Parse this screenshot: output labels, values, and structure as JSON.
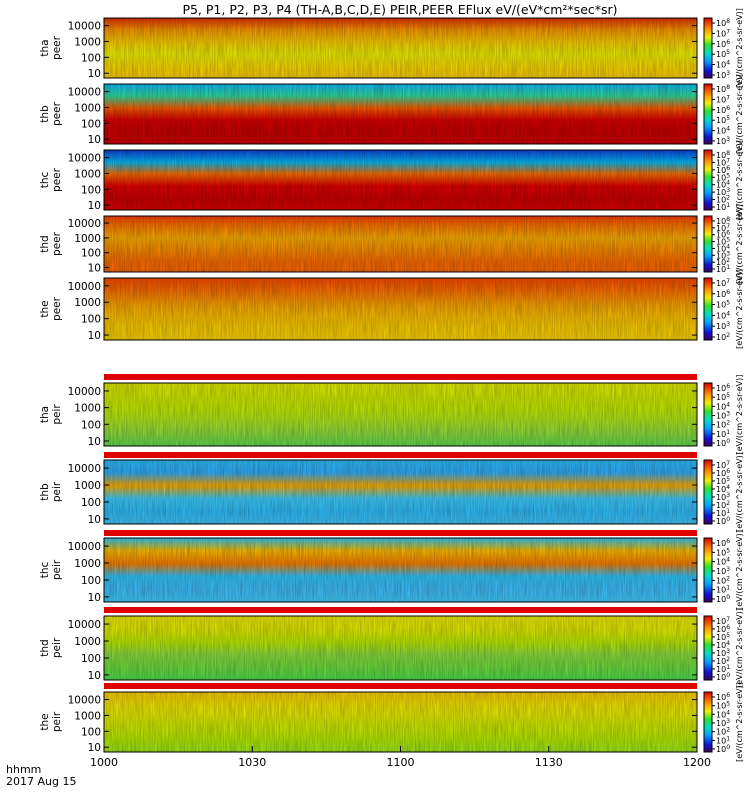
{
  "title": "P5, P1, P2, P3, P4 (TH-A,B,C,D,E) PEIR,PEER EFlux eV/(eV*cm²*sec*sr)",
  "time_labels": {
    "line1": "hhmm",
    "line2": "2017 Aug 15"
  },
  "colorbar_label": "[eV/(cm^2-s-sr-eV)]",
  "chart_data": [
    {
      "type": "heatmap",
      "name": "tha peer",
      "ylabel": [
        "tha",
        "peer"
      ],
      "yticks": [
        "10000",
        "1000",
        "100",
        "10"
      ],
      "ylim": [
        5,
        30000
      ],
      "yscale": "log",
      "xticks": [
        "1000",
        "1030",
        "1100",
        "1130",
        "1200"
      ],
      "xrange": [
        "10:00",
        "12:00"
      ],
      "colorbar_ticks": [
        "10^8",
        "10^7",
        "10^6",
        "10^5",
        "10^4",
        "10^3"
      ],
      "colorbar_label": "[eV/(cm^2-s-sr-eV)]",
      "state_bar": false
    },
    {
      "type": "heatmap",
      "name": "thb peer",
      "ylabel": [
        "thb",
        "peer"
      ],
      "yticks": [
        "10000",
        "1000",
        "100",
        "10"
      ],
      "ylim": [
        5,
        30000
      ],
      "yscale": "log",
      "xticks": [
        "1000",
        "1030",
        "1100",
        "1130",
        "1200"
      ],
      "xrange": [
        "10:00",
        "12:00"
      ],
      "colorbar_ticks": [
        "10^8",
        "10^7",
        "10^6",
        "10^5",
        "10^4",
        "10^3"
      ],
      "colorbar_label": "[eV/(cm^2-s-sr-eV)]",
      "state_bar": false
    },
    {
      "type": "heatmap",
      "name": "thc peer",
      "ylabel": [
        "thc",
        "peer"
      ],
      "yticks": [
        "10000",
        "1000",
        "100",
        "10"
      ],
      "ylim": [
        5,
        30000
      ],
      "yscale": "log",
      "xticks": [
        "1000",
        "1030",
        "1100",
        "1130",
        "1200"
      ],
      "xrange": [
        "10:00",
        "12:00"
      ],
      "colorbar_ticks": [
        "10^8",
        "10^7",
        "10^6",
        "10^5",
        "10^4",
        "10^3",
        "10^2",
        "10^1"
      ],
      "colorbar_label": "[eV/(cm^2-s-sr-eV)]",
      "state_bar": false
    },
    {
      "type": "heatmap",
      "name": "thd peer",
      "ylabel": [
        "thd",
        "peer"
      ],
      "yticks": [
        "10000",
        "1000",
        "100",
        "10"
      ],
      "ylim": [
        5,
        30000
      ],
      "yscale": "log",
      "xticks": [
        "1000",
        "1030",
        "1100",
        "1130",
        "1200"
      ],
      "xrange": [
        "10:00",
        "12:00"
      ],
      "colorbar_ticks": [
        "10^8",
        "10^7",
        "10^6",
        "10^5",
        "10^4",
        "10^3",
        "10^2",
        "10^1"
      ],
      "colorbar_label": "[eV/(cm^2-s-sr-eV)]",
      "state_bar": false
    },
    {
      "type": "heatmap",
      "name": "the peer",
      "ylabel": [
        "the",
        "peer"
      ],
      "yticks": [
        "10000",
        "1000",
        "100",
        "10"
      ],
      "ylim": [
        5,
        30000
      ],
      "yscale": "log",
      "xticks": [
        "1000",
        "1030",
        "1100",
        "1130",
        "1200"
      ],
      "xrange": [
        "10:00",
        "12:00"
      ],
      "colorbar_ticks": [
        "10^7",
        "10^6",
        "10^5",
        "10^4",
        "10^3",
        "10^2"
      ],
      "colorbar_label": "[eV/(cm^2-s-sr-eV)]",
      "state_bar": false
    },
    {
      "type": "heatmap",
      "name": "tha peir",
      "ylabel": [
        "tha",
        "peir"
      ],
      "yticks": [
        "10000",
        "1000",
        "100",
        "10"
      ],
      "ylim": [
        5,
        30000
      ],
      "yscale": "log",
      "xticks": [
        "1000",
        "1030",
        "1100",
        "1130",
        "1200"
      ],
      "xrange": [
        "10:00",
        "12:00"
      ],
      "colorbar_ticks": [
        "10^6",
        "10^5",
        "10^4",
        "10^3",
        "10^2",
        "10^1",
        "10^0"
      ],
      "colorbar_label": "[eV/(cm^2-s-sr-eV)]",
      "state_bar": true
    },
    {
      "type": "heatmap",
      "name": "thb peir",
      "ylabel": [
        "thb",
        "peir"
      ],
      "yticks": [
        "10000",
        "1000",
        "100",
        "10"
      ],
      "ylim": [
        5,
        30000
      ],
      "yscale": "log",
      "xticks": [
        "1000",
        "1030",
        "1100",
        "1130",
        "1200"
      ],
      "xrange": [
        "10:00",
        "12:00"
      ],
      "colorbar_ticks": [
        "10^7",
        "10^6",
        "10^5",
        "10^4",
        "10^3",
        "10^2",
        "10^1",
        "10^0"
      ],
      "colorbar_label": "[eV/(cm^2-s-sr-eV)]",
      "state_bar": true
    },
    {
      "type": "heatmap",
      "name": "thc peir",
      "ylabel": [
        "thc",
        "peir"
      ],
      "yticks": [
        "10000",
        "1000",
        "100",
        "10"
      ],
      "ylim": [
        5,
        30000
      ],
      "yscale": "log",
      "xticks": [
        "1000",
        "1030",
        "1100",
        "1130",
        "1200"
      ],
      "xrange": [
        "10:00",
        "12:00"
      ],
      "colorbar_ticks": [
        "10^6",
        "10^5",
        "10^4",
        "10^3",
        "10^2",
        "10^1",
        "10^0"
      ],
      "colorbar_label": "[eV/(cm^2-s-sr-eV)]",
      "state_bar": true
    },
    {
      "type": "heatmap",
      "name": "thd peir",
      "ylabel": [
        "thd",
        "peir"
      ],
      "yticks": [
        "10000",
        "1000",
        "100",
        "10"
      ],
      "ylim": [
        5,
        30000
      ],
      "yscale": "log",
      "xticks": [
        "1000",
        "1030",
        "1100",
        "1130",
        "1200"
      ],
      "xrange": [
        "10:00",
        "12:00"
      ],
      "colorbar_ticks": [
        "10^7",
        "10^6",
        "10^5",
        "10^4",
        "10^3",
        "10^2",
        "10^1",
        "10^0"
      ],
      "colorbar_label": "[eV/(cm^2-s-sr-eV)]",
      "state_bar": true
    },
    {
      "type": "heatmap",
      "name": "the peir",
      "ylabel": [
        "the",
        "peir"
      ],
      "yticks": [
        "10000",
        "1000",
        "100",
        "10"
      ],
      "ylim": [
        5,
        30000
      ],
      "yscale": "log",
      "xticks": [
        "1000",
        "1030",
        "1100",
        "1130",
        "1200"
      ],
      "xrange": [
        "10:00",
        "12:00"
      ],
      "colorbar_ticks": [
        "10^6",
        "10^5",
        "10^4",
        "10^3",
        "10^2",
        "10^1",
        "10^0"
      ],
      "colorbar_label": "[eV/(cm^2-s-sr-eV)]",
      "state_bar": true
    }
  ]
}
